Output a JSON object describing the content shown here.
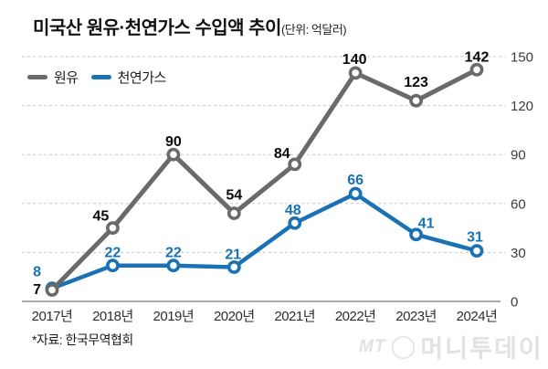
{
  "title": "미국산 원유·천연가스 수입액 추이",
  "unit_label": "(단위: 억달러)",
  "legend": {
    "items": [
      {
        "label": "원유",
        "color": "#6a6a6a"
      },
      {
        "label": "천연가스",
        "color": "#1a72b4"
      }
    ]
  },
  "source_note": "*자료: 한국무역협회",
  "watermark": {
    "prefix": "MT",
    "symbol": "◯",
    "text": "머니투데이"
  },
  "chart_data": {
    "type": "line",
    "categories": [
      "2017년",
      "2018년",
      "2019년",
      "2020년",
      "2021년",
      "2022년",
      "2023년",
      "2024년"
    ],
    "series": [
      {
        "name": "원유",
        "color": "#6a6a6a",
        "label_color": "#0a0a0a",
        "values": [
          7,
          45,
          90,
          54,
          84,
          140,
          123,
          142
        ]
      },
      {
        "name": "천연가스",
        "color": "#1a72b4",
        "label_color": "#1a72b4",
        "values": [
          8,
          22,
          22,
          21,
          48,
          66,
          41,
          31
        ]
      }
    ],
    "yticks": [
      0,
      30,
      60,
      90,
      120,
      150
    ],
    "ylim": [
      0,
      150
    ],
    "grid": "dashed-horizontal",
    "legend_position": "top-left",
    "ylabel": "",
    "xlabel": ""
  }
}
